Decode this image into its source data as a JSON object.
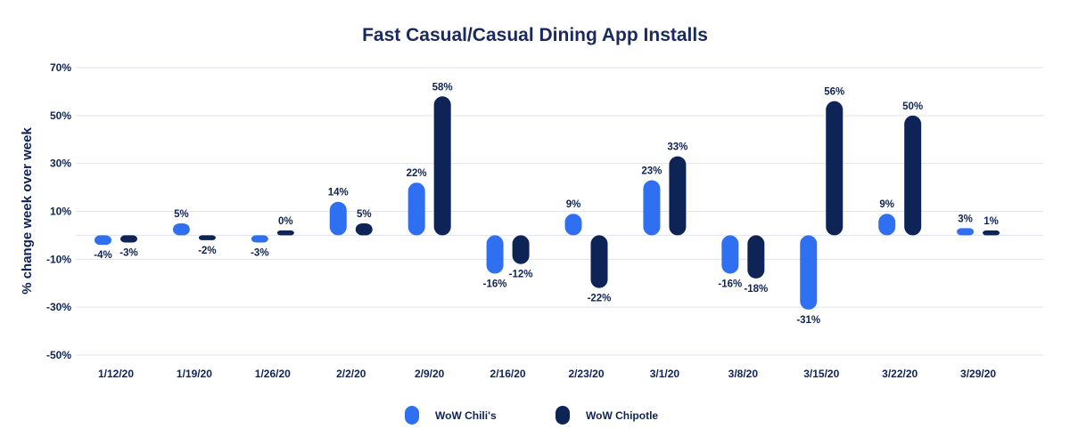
{
  "chart_data": {
    "type": "bar",
    "title": "Fast Casual/Casual Dining App Installs",
    "xlabel": "",
    "ylabel": "% change week over week",
    "ylim": [
      -50,
      70
    ],
    "yticks": [
      -50,
      -30,
      -10,
      10,
      30,
      50,
      70
    ],
    "ytick_labels": [
      "-50%",
      "-30%",
      "-10%",
      "10%",
      "30%",
      "50%",
      "70%"
    ],
    "grid": true,
    "legend_position": "bottom-center",
    "categories": [
      "1/12/20",
      "1/19/20",
      "1/26/20",
      "2/2/20",
      "2/9/20",
      "2/16/20",
      "2/23/20",
      "3/1/20",
      "3/8/20",
      "3/15/20",
      "3/22/20",
      "3/29/20"
    ],
    "series": [
      {
        "name": "WoW Chili's",
        "color": "#2f6ff2",
        "values": [
          -4,
          5,
          -3,
          14,
          22,
          -16,
          9,
          23,
          -16,
          -31,
          9,
          3
        ],
        "labels": [
          "-4%",
          "5%",
          "-3%",
          "14%",
          "22%",
          "-16%",
          "9%",
          "23%",
          "-16%",
          "-31%",
          "9%",
          "3%"
        ]
      },
      {
        "name": "WoW Chipotle",
        "color": "#0e2356",
        "values": [
          -3,
          -2,
          0,
          5,
          58,
          -12,
          -22,
          33,
          -18,
          56,
          50,
          1
        ],
        "labels": [
          "-3%",
          "-2%",
          "0%",
          "5%",
          "58%",
          "-12%",
          "-22%",
          "33%",
          "-18%",
          "56%",
          "50%",
          "1%"
        ]
      }
    ]
  }
}
